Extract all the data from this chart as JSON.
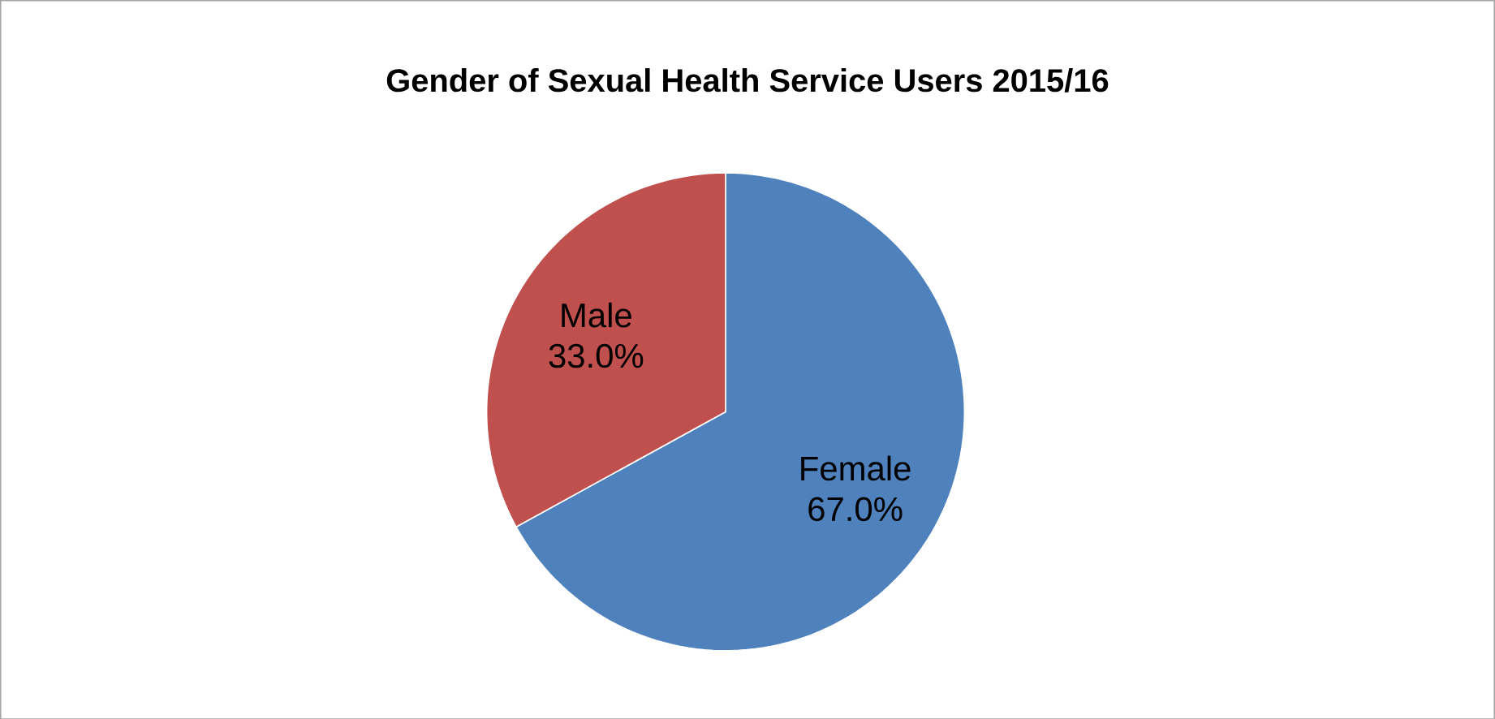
{
  "chart_data": {
    "type": "pie",
    "title": "Gender of Sexual Health Service Users 2015/16",
    "categories": [
      "Female",
      "Male"
    ],
    "values": [
      67.0,
      33.0
    ],
    "value_labels": [
      "67.0%",
      "33.0%"
    ],
    "colors": [
      "#4f81bd",
      "#c0504d"
    ]
  }
}
